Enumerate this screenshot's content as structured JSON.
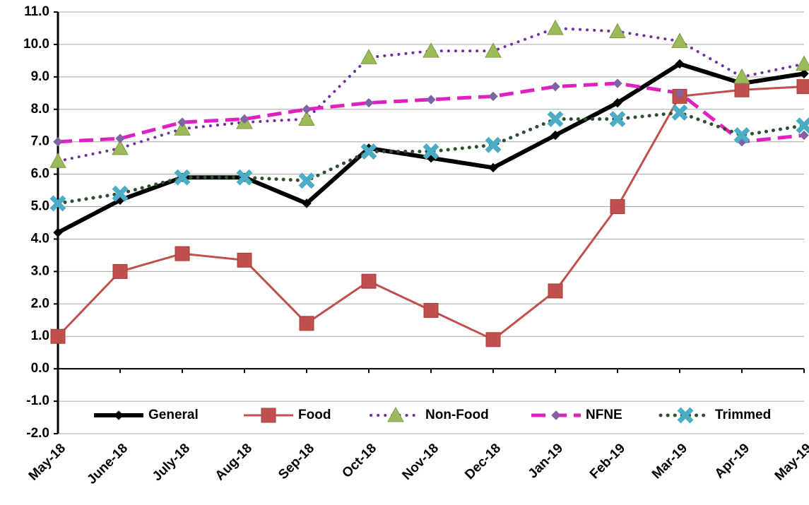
{
  "chart_data": {
    "type": "line",
    "categories": [
      "May-18",
      "June-18",
      "July-18",
      "Aug-18",
      "Sep-18",
      "Oct-18",
      "Nov-18",
      "Dec-18",
      "Jan-19",
      "Feb-19",
      "Mar-19",
      "Apr-19",
      "May-19"
    ],
    "ylim": [
      -2,
      11
    ],
    "yticks": [
      {
        "value": -2,
        "label": "-2.0"
      },
      {
        "value": -1,
        "label": "-1.0"
      },
      {
        "value": 0,
        "label": "0.0"
      },
      {
        "value": 1,
        "label": "1.0"
      },
      {
        "value": 2,
        "label": "2.0"
      },
      {
        "value": 3,
        "label": "3.0"
      },
      {
        "value": 4,
        "label": "4.0"
      },
      {
        "value": 5,
        "label": "5.0"
      },
      {
        "value": 6,
        "label": "6.0"
      },
      {
        "value": 7,
        "label": "7.0"
      },
      {
        "value": 8,
        "label": "8.0"
      },
      {
        "value": 9,
        "label": "9.0"
      },
      {
        "value": 10,
        "label": "10.0"
      },
      {
        "value": 11,
        "label": "11.0"
      }
    ],
    "grid": true,
    "legend": "bottom",
    "series": [
      {
        "name": "General",
        "color": "#000000",
        "marker_color": "#000000",
        "marker": "diamond",
        "line_style": "solid",
        "values": [
          4.2,
          5.2,
          5.9,
          5.9,
          5.1,
          6.8,
          6.5,
          6.2,
          7.2,
          8.2,
          9.4,
          8.8,
          9.1
        ]
      },
      {
        "name": "Food",
        "color": "#c0504d",
        "marker_color": "#c0504d",
        "marker": "square",
        "line_style": "solid",
        "values": [
          1.0,
          3.0,
          3.55,
          3.35,
          1.4,
          2.7,
          1.8,
          0.9,
          2.4,
          5.0,
          8.4,
          8.6,
          8.7
        ]
      },
      {
        "name": "Non-Food",
        "color": "#7030a0",
        "marker_color": "#9bbb59",
        "marker": "triangle",
        "line_style": "dotted",
        "values": [
          6.4,
          6.8,
          7.4,
          7.6,
          7.7,
          9.6,
          9.8,
          9.8,
          10.5,
          10.4,
          10.1,
          9.0,
          9.4
        ]
      },
      {
        "name": "NFNE",
        "color": "#e020c0",
        "marker_color": "#8064a2",
        "marker": "diamond",
        "line_style": "dashed",
        "values": [
          7.0,
          7.1,
          7.6,
          7.7,
          8.0,
          8.2,
          8.3,
          8.4,
          8.7,
          8.8,
          8.5,
          7.0,
          7.2
        ]
      },
      {
        "name": "Trimmed",
        "color": "#2f4f2f",
        "marker_color": "#4bacc6",
        "marker": "x",
        "line_style": "dotted",
        "values": [
          5.1,
          5.4,
          5.9,
          5.9,
          5.8,
          6.7,
          6.7,
          6.9,
          7.7,
          7.7,
          7.9,
          7.2,
          7.5
        ]
      }
    ]
  }
}
